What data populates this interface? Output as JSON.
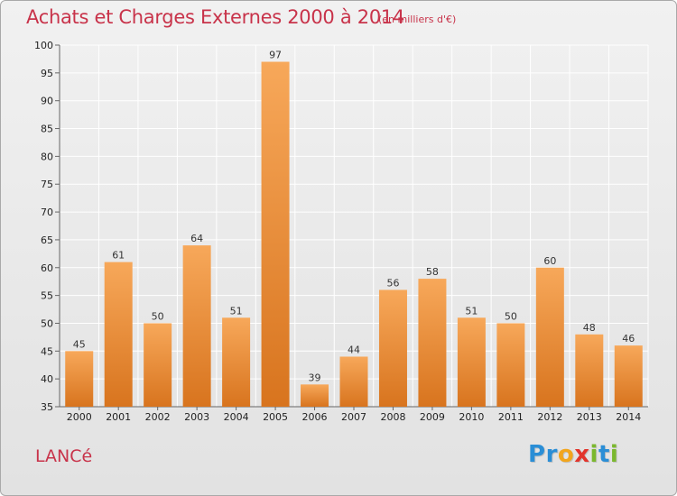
{
  "header": {
    "title": "Achats et Charges Externes 2000 à 2014",
    "subtitle": "(en milliers d'€)"
  },
  "footer": {
    "commune": "LANCé",
    "logo_letters": [
      {
        "ch": "P",
        "color": "#2a8ed6"
      },
      {
        "ch": "r",
        "color": "#2a8ed6"
      },
      {
        "ch": "o",
        "color": "#f2a51c"
      },
      {
        "ch": "x",
        "color": "#e2342b"
      },
      {
        "ch": "i",
        "color": "#7bb82e"
      },
      {
        "ch": "t",
        "color": "#2a8ed6"
      },
      {
        "ch": "i",
        "color": "#7bb82e"
      }
    ]
  },
  "chart_data": {
    "type": "bar",
    "categories": [
      "2000",
      "2001",
      "2002",
      "2003",
      "2004",
      "2005",
      "2006",
      "2007",
      "2008",
      "2009",
      "2010",
      "2011",
      "2012",
      "2013",
      "2014"
    ],
    "values": [
      45,
      61,
      50,
      64,
      51,
      97,
      39,
      44,
      56,
      58,
      51,
      50,
      60,
      48,
      46
    ],
    "ylim": [
      35,
      100
    ],
    "yticks": [
      35,
      40,
      45,
      50,
      55,
      60,
      65,
      70,
      75,
      80,
      85,
      90,
      95,
      100
    ],
    "grid": true,
    "bar_color_top": "#f7a85a",
    "bar_color_bottom": "#d8741e",
    "grid_color": "#ffffff",
    "axis_color": "#666666"
  }
}
